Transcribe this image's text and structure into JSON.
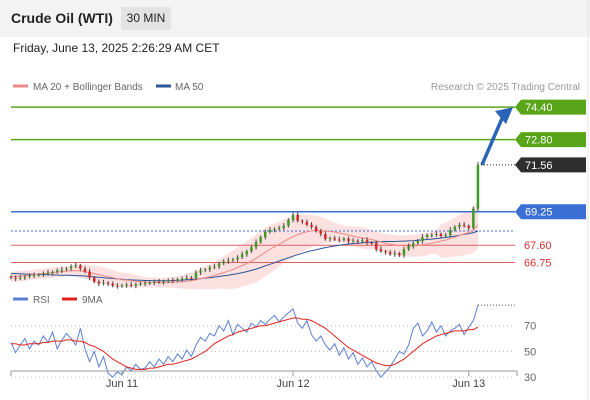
{
  "header": {
    "title": "Crude Oil (WTI)",
    "timeframe": "30 MIN"
  },
  "datetime": "Friday, June 13, 2025 2:26:29 AM CET",
  "legend": {
    "items": [
      {
        "label": "MA 20 + Bollinger Bands",
        "color": "#f08a86"
      },
      {
        "label": "MA 50",
        "color": "#2c5596"
      }
    ],
    "credit": "Research © 2025 Trading Central"
  },
  "rsi_legend": {
    "items": [
      {
        "label": "RSI",
        "color": "#5a7fd6"
      },
      {
        "label": "9MA",
        "color": "#e0201c"
      }
    ]
  },
  "chart_data": [
    {
      "type": "candlestick",
      "series_name": "Crude Oil (WTI)",
      "ylim": [
        64.9,
        75.0
      ],
      "x_ticks": [
        "Jun 11",
        "Jun 12",
        "Jun 13"
      ],
      "current_price": "71.56",
      "levels": [
        {
          "value": 74.4,
          "label": "74.40",
          "kind": "resistance",
          "color": "#58a519",
          "style": "solid"
        },
        {
          "value": 72.8,
          "label": "72.80",
          "kind": "resistance",
          "color": "#58a519",
          "style": "solid"
        },
        {
          "value": 71.56,
          "label": "71.56",
          "kind": "last",
          "color": "#222222",
          "style": "dotted"
        },
        {
          "value": 69.25,
          "label": "69.25",
          "kind": "pivot",
          "color": "#3b6fd4",
          "style": "solid"
        },
        {
          "value": 67.6,
          "label": "67.60",
          "kind": "support",
          "color": "#e06060",
          "style": "solid"
        },
        {
          "value": 66.75,
          "label": "66.75",
          "kind": "support",
          "color": "#e06060",
          "style": "solid"
        }
      ],
      "closes": [
        66.0,
        65.95,
        66.0,
        66.05,
        66.1,
        66.12,
        66.15,
        66.2,
        66.25,
        66.28,
        66.35,
        66.4,
        66.45,
        66.55,
        66.6,
        66.45,
        66.3,
        66.0,
        65.8,
        65.7,
        65.75,
        65.7,
        65.6,
        65.58,
        65.62,
        65.65,
        65.6,
        65.68,
        65.7,
        65.72,
        65.75,
        65.8,
        65.78,
        65.82,
        65.86,
        65.85,
        65.92,
        65.95,
        66.0,
        65.98,
        66.25,
        66.35,
        66.4,
        66.5,
        66.55,
        66.7,
        66.8,
        66.85,
        66.9,
        67.0,
        67.15,
        67.3,
        67.5,
        67.75,
        68.0,
        68.25,
        68.35,
        68.4,
        68.45,
        68.55,
        68.85,
        69.1,
        68.8,
        68.75,
        68.6,
        68.5,
        68.3,
        68.15,
        67.9,
        67.95,
        67.88,
        67.85,
        67.92,
        67.8,
        67.82,
        67.78,
        67.85,
        67.72,
        67.7,
        67.4,
        67.3,
        67.25,
        67.15,
        67.2,
        67.1,
        67.4,
        67.55,
        67.7,
        67.8,
        68.0,
        68.1,
        68.1,
        68.15,
        68.05,
        68.1,
        68.35,
        68.5,
        68.6,
        68.55,
        68.45,
        69.4,
        71.56
      ],
      "ma20": [
        66.05,
        66.06,
        66.08,
        66.1,
        66.12,
        66.15,
        66.18,
        66.2,
        66.22,
        66.25,
        66.28,
        66.3,
        66.32,
        66.34,
        66.35,
        66.33,
        66.3,
        66.25,
        66.2,
        66.15,
        66.1,
        66.05,
        66.0,
        65.95,
        65.9,
        65.88,
        65.85,
        65.82,
        65.8,
        65.78,
        65.76,
        65.76,
        65.75,
        65.75,
        65.76,
        65.77,
        65.78,
        65.8,
        65.82,
        65.85,
        65.9,
        65.95,
        66.0,
        66.05,
        66.1,
        66.18,
        66.25,
        66.32,
        66.4,
        66.5,
        66.6,
        66.7,
        66.82,
        66.95,
        67.1,
        67.25,
        67.4,
        67.52,
        67.65,
        67.78,
        67.9,
        68.02,
        68.12,
        68.2,
        68.26,
        68.3,
        68.32,
        68.32,
        68.3,
        68.28,
        68.25,
        68.2,
        68.15,
        68.1,
        68.05,
        68.0,
        67.96,
        67.92,
        67.88,
        67.82,
        67.76,
        67.7,
        67.65,
        67.62,
        67.58,
        67.57,
        67.56,
        67.57,
        67.58,
        67.62,
        67.66,
        67.7,
        67.75,
        67.8,
        67.85,
        67.92,
        68.0,
        68.08,
        68.15,
        68.22,
        68.35,
        68.6
      ],
      "ma50": [
        66.2,
        66.2,
        66.19,
        66.18,
        66.17,
        66.16,
        66.15,
        66.15,
        66.14,
        66.13,
        66.13,
        66.12,
        66.12,
        66.11,
        66.1,
        66.09,
        66.08,
        66.06,
        66.04,
        66.02,
        66.0,
        65.98,
        65.96,
        65.94,
        65.92,
        65.9,
        65.89,
        65.88,
        65.87,
        65.86,
        65.86,
        65.85,
        65.85,
        65.85,
        65.85,
        65.86,
        65.87,
        65.88,
        65.9,
        65.91,
        65.93,
        65.95,
        65.98,
        66.0,
        66.03,
        66.06,
        66.09,
        66.12,
        66.16,
        66.2,
        66.25,
        66.3,
        66.36,
        66.42,
        66.5,
        66.58,
        66.66,
        66.74,
        66.82,
        66.9,
        66.98,
        67.06,
        67.13,
        67.2,
        67.27,
        67.33,
        67.38,
        67.43,
        67.48,
        67.52,
        67.56,
        67.6,
        67.63,
        67.66,
        67.68,
        67.7,
        67.72,
        67.74,
        67.75,
        67.76,
        67.77,
        67.78,
        67.78,
        67.78,
        67.79,
        67.8,
        67.81,
        67.82,
        67.84,
        67.86,
        67.88,
        67.9,
        67.93,
        67.95,
        67.98,
        68.02,
        68.05,
        68.09,
        68.13,
        68.17,
        68.22,
        68.3
      ]
    },
    {
      "type": "line",
      "series_name": "RSI",
      "ylim": [
        20,
        90
      ],
      "y_ticks": [
        70,
        50,
        30
      ],
      "rsi": [
        57,
        49,
        55,
        60,
        52,
        58,
        55,
        62,
        57,
        65,
        52,
        59,
        64,
        60,
        55,
        68,
        52,
        42,
        50,
        38,
        46,
        33,
        30,
        34,
        32,
        38,
        35,
        40,
        36,
        37,
        42,
        38,
        44,
        40,
        46,
        42,
        48,
        44,
        51,
        46,
        55,
        61,
        58,
        64,
        62,
        70,
        66,
        74,
        63,
        71,
        68,
        65,
        72,
        69,
        74,
        71,
        75,
        78,
        73,
        77,
        80,
        83,
        72,
        68,
        74,
        63,
        58,
        62,
        55,
        51,
        56,
        47,
        53,
        44,
        49,
        40,
        45,
        38,
        42,
        35,
        30,
        34,
        38,
        44,
        50,
        48,
        55,
        68,
        72,
        62,
        66,
        73,
        65,
        70,
        62,
        66,
        68,
        71,
        63,
        69,
        74,
        86
      ],
      "rsi_ma": [
        56,
        56,
        55,
        55,
        56,
        56,
        56,
        57,
        57,
        58,
        58,
        58,
        59,
        59,
        58,
        58,
        57,
        55,
        54,
        52,
        50,
        47,
        44,
        42,
        40,
        38,
        37,
        36,
        36,
        36,
        37,
        37,
        38,
        39,
        40,
        40,
        41,
        42,
        43,
        44,
        46,
        48,
        50,
        53,
        56,
        58,
        60,
        62,
        63,
        65,
        66,
        67,
        68,
        69,
        70,
        70,
        71,
        72,
        73,
        74,
        75,
        76,
        76,
        75,
        75,
        74,
        72,
        70,
        68,
        65,
        62,
        59,
        56,
        53,
        51,
        49,
        47,
        45,
        43,
        41,
        40,
        39,
        39,
        40,
        42,
        44,
        47,
        50,
        53,
        56,
        58,
        60,
        62,
        63,
        64,
        65,
        66,
        66,
        66,
        67,
        67,
        69
      ]
    }
  ]
}
